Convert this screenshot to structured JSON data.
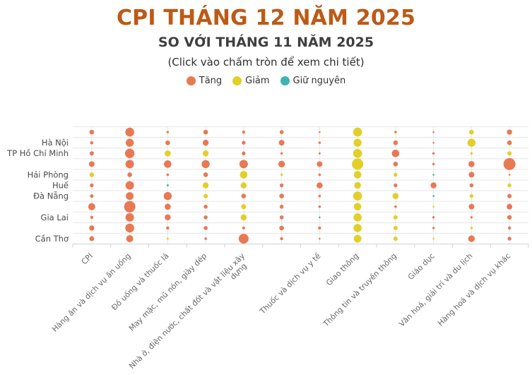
{
  "header": {
    "title": "CPI THÁNG 12 NĂM 2025",
    "subtitle": "SO VỚI THÁNG 11 NĂM 2025",
    "note": "(Click vào chấm tròn để xem chi tiết)"
  },
  "legend": {
    "items": [
      {
        "key": "T",
        "label": "Tăng",
        "color": "#E87953"
      },
      {
        "key": "G",
        "label": "Giảm",
        "color": "#E2CF28"
      },
      {
        "key": "N",
        "label": "Giữ nguyên",
        "color": "#3CB4B0"
      }
    ]
  },
  "chart_data": {
    "type": "scatter",
    "subtype": "bubble-matrix",
    "title": "CPI THÁNG 12 NĂM 2025",
    "subtitle": "SO VỚI THÁNG 11 NĂM 2025",
    "annotation": "(Click vào chấm tròn để xem chi tiết)",
    "legend_entries": [
      "Tăng",
      "Giảm",
      "Giữ nguyên"
    ],
    "legend_position": "top-center",
    "grid": true,
    "status_colors": {
      "T": "#E87953",
      "G": "#E2CF28",
      "N": "#3CB4B0"
    },
    "status_labels": {
      "T": "Tăng",
      "G": "Giảm",
      "N": "Giữ nguyên"
    },
    "x_categories": [
      "CPI",
      "Hàng ăn và dịch vụ ăn uống",
      "Đồ uống và thuốc lá",
      "May mặc, mũ nón, giày dép",
      "Nhà ở, điện nước, chất đốt và vật liệu xây\ndựng",
      "",
      "Thuốc và dịch vụ y tế",
      "Giao thông",
      "Thông tin và truyền thông",
      "Giáo dục",
      "Văn hoá, giải trí và du lịch",
      "Hàng hoá và dịch vụ khác"
    ],
    "y_categories": [
      "",
      "Hà Nội",
      "TP Hồ Chí Minh",
      "",
      "Hải Phòng",
      "Huế",
      "Đà Nẵng",
      "",
      "Gia Lai",
      "",
      "Cần Thơ"
    ],
    "cells": [
      [
        [
          "T",
          3.3
        ],
        [
          "T",
          6.3
        ],
        [
          "T",
          1.7
        ],
        [
          "T",
          3.3
        ],
        [
          "T",
          2.2
        ],
        [
          "T",
          2.8
        ],
        [
          "T",
          1.3
        ],
        [
          "G",
          6.3
        ],
        [
          "T",
          1.8
        ],
        [
          "T",
          1.3
        ],
        [
          "G",
          3.3
        ],
        [
          "T",
          3.7
        ]
      ],
      [
        [
          "T",
          2.3
        ],
        [
          "T",
          5.7
        ],
        [
          "T",
          3.3
        ],
        [
          "T",
          4.2
        ],
        [
          "T",
          2.7
        ],
        [
          "T",
          4.0
        ],
        [
          "T",
          1.7
        ],
        [
          "G",
          5.7
        ],
        [
          "T",
          3.3
        ],
        [
          "T",
          1.3
        ],
        [
          "G",
          5.7
        ],
        [
          "T",
          3.3
        ]
      ],
      [
        [
          "T",
          3.0
        ],
        [
          "T",
          6.7
        ],
        [
          "G",
          4.3
        ],
        [
          "G",
          4.2
        ],
        [
          "T",
          2.7
        ],
        [
          "T",
          1.7
        ],
        [
          "T",
          1.5
        ],
        [
          "G",
          6.3
        ],
        [
          "T",
          5.3
        ],
        [
          "T",
          1.7
        ],
        [
          "G",
          1.8
        ],
        [
          "G",
          3.0
        ]
      ],
      [
        [
          "T",
          4.0
        ],
        [
          "T",
          6.0
        ],
        [
          "T",
          5.3
        ],
        [
          "T",
          5.7
        ],
        [
          "T",
          6.0
        ],
        [
          "T",
          4.7
        ],
        [
          "T",
          4.0
        ],
        [
          "G",
          8.0
        ],
        [
          "T",
          3.3
        ],
        [
          "T",
          1.7
        ],
        [
          "T",
          4.3
        ],
        [
          "T",
          8.5
        ]
      ],
      [
        [
          "G",
          3.3
        ],
        [
          "T",
          3.3
        ],
        [
          "T",
          1.8
        ],
        [
          "T",
          3.3
        ],
        [
          "G",
          5.3
        ],
        [
          "G",
          1.7
        ],
        [
          "T",
          1.8
        ],
        [
          "G",
          5.3
        ],
        [
          "G",
          2.7
        ],
        [
          "N",
          1.3
        ],
        [
          "T",
          4.0
        ],
        [
          "T",
          1.3
        ]
      ],
      [
        [
          "T",
          2.7
        ],
        [
          "T",
          6.0
        ],
        [
          "N",
          1.5
        ],
        [
          "G",
          4.2
        ],
        [
          "G",
          4.3
        ],
        [
          "T",
          2.7
        ],
        [
          "T",
          4.3
        ],
        [
          "G",
          4.7
        ],
        [
          "T",
          2.7
        ],
        [
          "T",
          4.2
        ],
        [
          "T",
          2.8
        ],
        [
          "G",
          2.7
        ]
      ],
      [
        [
          "T",
          2.5
        ],
        [
          "T",
          5.5
        ],
        [
          "T",
          5.7
        ],
        [
          "G",
          3.0
        ],
        [
          "T",
          3.3
        ],
        [
          "T",
          3.3
        ],
        [
          "T",
          1.8
        ],
        [
          "G",
          6.3
        ],
        [
          "G",
          4.3
        ],
        [
          "N",
          1.3
        ],
        [
          "G",
          2.7
        ],
        [
          "T",
          3.0
        ]
      ],
      [
        [
          "T",
          5.0
        ],
        [
          "T",
          8.0
        ],
        [
          "T",
          4.3
        ],
        [
          "T",
          2.8
        ],
        [
          "G",
          3.5
        ],
        [
          "T",
          2.8
        ],
        [
          "T",
          1.8
        ],
        [
          "G",
          5.3
        ],
        [
          "T",
          1.8
        ],
        [
          "G",
          1.3
        ],
        [
          "T",
          4.0
        ],
        [
          "T",
          4.0
        ]
      ],
      [
        [
          "T",
          2.2
        ],
        [
          "T",
          6.0
        ],
        [
          "T",
          4.2
        ],
        [
          "T",
          2.8
        ],
        [
          "G",
          4.3
        ],
        [
          "T",
          2.8
        ],
        [
          "N",
          1.3
        ],
        [
          "G",
          5.8
        ],
        [
          "G",
          3.0
        ],
        [
          "T",
          1.7
        ],
        [
          "T",
          1.7
        ],
        [
          "T",
          3.2
        ]
      ],
      [
        [
          "T",
          3.7
        ],
        [
          "T",
          6.3
        ],
        [
          "T",
          2.3
        ],
        [
          "T",
          2.8
        ],
        [
          "T",
          2.0
        ],
        [
          "T",
          3.3
        ],
        [
          "T",
          2.2
        ],
        [
          "G",
          5.8
        ],
        [
          "G",
          3.0
        ],
        [
          "T",
          1.7
        ],
        [
          "G",
          1.7
        ],
        [
          "T",
          2.2
        ]
      ],
      [
        [
          "T",
          3.5
        ],
        [
          "T",
          5.0
        ],
        [
          "G",
          1.5
        ],
        [
          "T",
          1.8
        ],
        [
          "T",
          7.0
        ],
        [
          "T",
          2.2
        ],
        [
          "T",
          1.3
        ],
        [
          "G",
          5.5
        ],
        [
          "G",
          3.0
        ],
        [
          "G",
          1.3
        ],
        [
          "T",
          4.7
        ],
        [
          "T",
          2.7
        ]
      ]
    ]
  }
}
